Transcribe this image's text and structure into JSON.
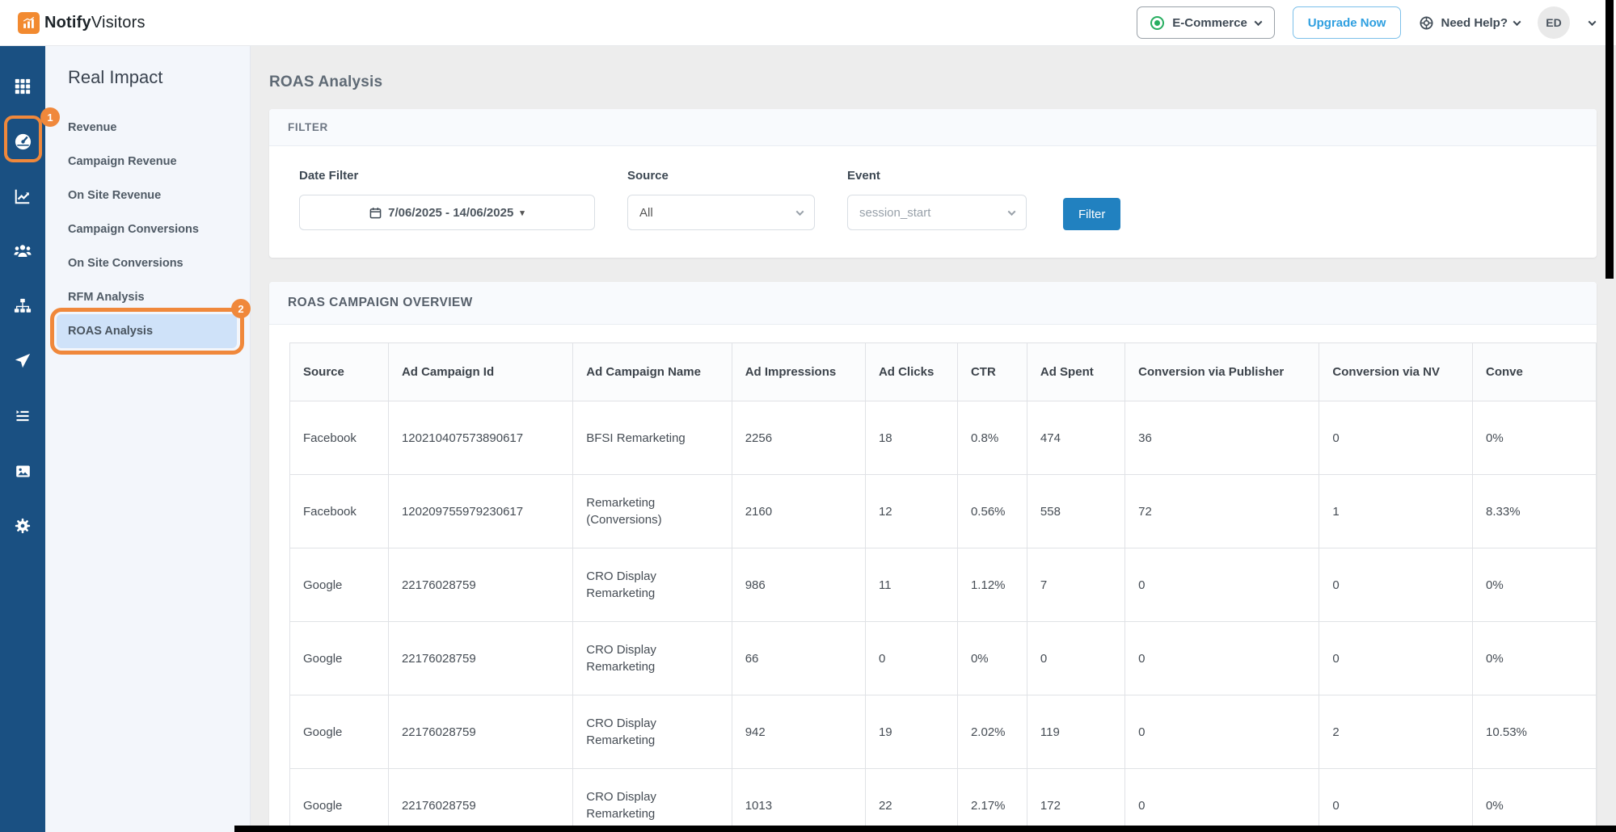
{
  "header": {
    "brand_bold": "Notify",
    "brand_light": "Visitors",
    "workspace": "E-Commerce",
    "upgrade_label": "Upgrade Now",
    "help_label": "Need Help?",
    "avatar_initials": "ED"
  },
  "sidebar": {
    "title": "Real Impact",
    "items": [
      {
        "label": "Revenue"
      },
      {
        "label": "Campaign Revenue"
      },
      {
        "label": "On Site Revenue"
      },
      {
        "label": "Campaign Conversions"
      },
      {
        "label": "On Site Conversions"
      },
      {
        "label": "RFM Analysis"
      },
      {
        "label": "ROAS Analysis"
      }
    ],
    "active_item": "ROAS Analysis"
  },
  "annotations": {
    "step1": "1",
    "step2": "2"
  },
  "page": {
    "title": "ROAS Analysis"
  },
  "filter": {
    "section_title": "FILTER",
    "date_label": "Date Filter",
    "date_value": "7/06/2025 - 14/06/2025",
    "date_caret": "▾",
    "source_label": "Source",
    "source_value": "All",
    "event_label": "Event",
    "event_value": "session_start",
    "submit_label": "Filter"
  },
  "overview": {
    "section_title": "ROAS CAMPAIGN OVERVIEW",
    "columns": [
      "Source",
      "Ad Campaign Id",
      "Ad Campaign Name",
      "Ad Impressions",
      "Ad Clicks",
      "CTR",
      "Ad Spent",
      "Conversion via Publisher",
      "Conversion via NV",
      "Conve"
    ],
    "rows": [
      [
        "Facebook",
        "120210407573890617",
        "BFSI Remarketing",
        "2256",
        "18",
        "0.8%",
        "474",
        "36",
        "0",
        "0%"
      ],
      [
        "Facebook",
        "120209755979230617",
        "Remarketing (Conversions)",
        "2160",
        "12",
        "0.56%",
        "558",
        "72",
        "1",
        "8.33%"
      ],
      [
        "Google",
        "22176028759",
        "CRO Display Remarketing",
        "986",
        "11",
        "1.12%",
        "7",
        "0",
        "0",
        "0%"
      ],
      [
        "Google",
        "22176028759",
        "CRO Display Remarketing",
        "66",
        "0",
        "0%",
        "0",
        "0",
        "0",
        "0%"
      ],
      [
        "Google",
        "22176028759",
        "CRO Display Remarketing",
        "942",
        "19",
        "2.02%",
        "119",
        "0",
        "2",
        "10.53%"
      ],
      [
        "Google",
        "22176028759",
        "CRO Display Remarketing",
        "1013",
        "22",
        "2.17%",
        "172",
        "0",
        "0",
        "0%"
      ]
    ]
  },
  "icons": {
    "rail": [
      "apps-grid-icon",
      "dashboard-gauge-icon",
      "chart-line-icon",
      "audience-users-icon",
      "sitemap-icon",
      "send-plane-icon",
      "activity-list-icon",
      "media-image-icon",
      "settings-gear-icon"
    ]
  },
  "colors": {
    "rail_blue": "#1a5082",
    "annotation_orange": "#f0883b",
    "primary_button_blue": "#2181c0",
    "upgrade_blue": "#2e9fe0",
    "active_item_bg": "#cfe2f9",
    "status_green": "#27ae60",
    "brand_orange": "#f28a30"
  }
}
